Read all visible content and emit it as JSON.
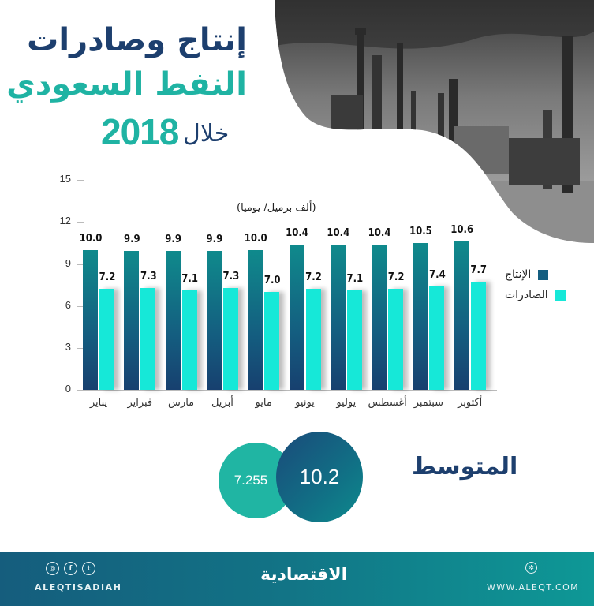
{
  "title": {
    "line1": "إنتاج وصادرات",
    "line2": "النفط السعودي",
    "line3_word": "خلال",
    "line3_year": "2018"
  },
  "colors": {
    "title_dark": "#1d3f6e",
    "title_teal": "#1fb3a3",
    "production": "#145e80",
    "exports": "#16e8d8",
    "footer_start": "#155d7d",
    "footer_end": "#0e9896"
  },
  "chart_data": {
    "type": "bar",
    "title": "إنتاج وصادرات النفط السعودي خلال 2018",
    "unit": "(ألف برميل/ يوميا)",
    "xlabel": "",
    "ylabel": "(ألف برميل/ يوميا)",
    "ylim": [
      0,
      15
    ],
    "yticks": [
      0,
      3,
      6,
      9,
      12,
      15
    ],
    "grid": false,
    "legend_position": "right",
    "categories": [
      "يناير",
      "فبراير",
      "مارس",
      "أبريل",
      "مايو",
      "يونيو",
      "يوليو",
      "أغسطس",
      "سبتمبر",
      "أكتوبر"
    ],
    "series": [
      {
        "name": "الإنتاج",
        "color": "#145e80",
        "values": [
          10.0,
          9.9,
          9.9,
          9.9,
          10.0,
          10.4,
          10.4,
          10.4,
          10.5,
          10.6
        ]
      },
      {
        "name": "الصادرات",
        "color": "#16e8d8",
        "values": [
          7.2,
          7.3,
          7.1,
          7.3,
          7.0,
          7.2,
          7.1,
          7.2,
          7.4,
          7.7
        ]
      }
    ]
  },
  "chart": {
    "unit_label": "(ألف برميل/ يوميا)",
    "yticks": [
      "0",
      "3",
      "6",
      "9",
      "12",
      "15"
    ],
    "months": [
      "يناير",
      "فبراير",
      "مارس",
      "أبريل",
      "مايو",
      "يونيو",
      "يوليو",
      "أغسطس",
      "سبتمبر",
      "أكتوبر"
    ],
    "production_labels": [
      "10.0",
      "9.9",
      "9.9",
      "9.9",
      "10.0",
      "10.4",
      "10.4",
      "10.4",
      "10.5",
      "10.6"
    ],
    "export_labels": [
      "7.2",
      "7.3",
      "7.1",
      "7.3",
      "7.0",
      "7.2",
      "7.1",
      "7.2",
      "7.4",
      "7.7"
    ],
    "legend": {
      "production": "الإنتاج",
      "exports": "الصادرات"
    }
  },
  "averages": {
    "label": "المتوسط",
    "production": "10.2",
    "exports": "7.255"
  },
  "footer": {
    "social_icons": [
      "instagram-icon",
      "facebook-icon",
      "twitter-icon"
    ],
    "handle": "ALEQTISADIAH",
    "brand": "الاقتصادية",
    "website": "WWW.ALEQT.COM",
    "web_icon": "globe-icon"
  }
}
